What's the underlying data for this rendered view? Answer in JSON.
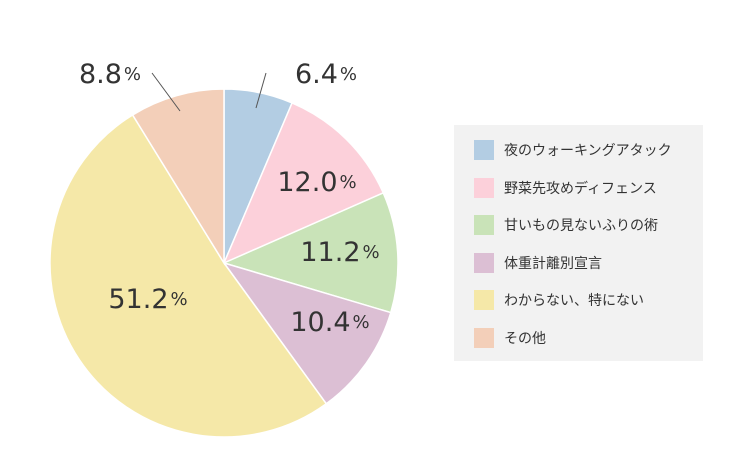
{
  "colors": {
    "text": "#333333",
    "leader_line": "#555555"
  },
  "chart_data": {
    "type": "pie",
    "start_angle_deg": 0,
    "direction": "clockwise",
    "legend_position": "right",
    "slices": [
      {
        "label": "夜のウォーキングアタック",
        "value": 6.4,
        "value_label": "6.4",
        "unit": "%",
        "color": "#b3cde3"
      },
      {
        "label": "野菜先攻めディフェンス",
        "value": 12.0,
        "value_label": "12.0",
        "unit": "%",
        "color": "#fcd0da"
      },
      {
        "label": "甘いもの見ないふりの術",
        "value": 11.2,
        "value_label": "11.2",
        "unit": "%",
        "color": "#c9e3b8"
      },
      {
        "label": "体重計離別宣言",
        "value": 10.4,
        "value_label": "10.4",
        "unit": "%",
        "color": "#dcbfd4"
      },
      {
        "label": "わからない、特にない",
        "value": 51.2,
        "value_label": "51.2",
        "unit": "%",
        "color": "#f5e8a8"
      },
      {
        "label": "その他",
        "value": 8.8,
        "value_label": "8.8",
        "unit": "%",
        "color": "#f3cfb9"
      }
    ]
  }
}
